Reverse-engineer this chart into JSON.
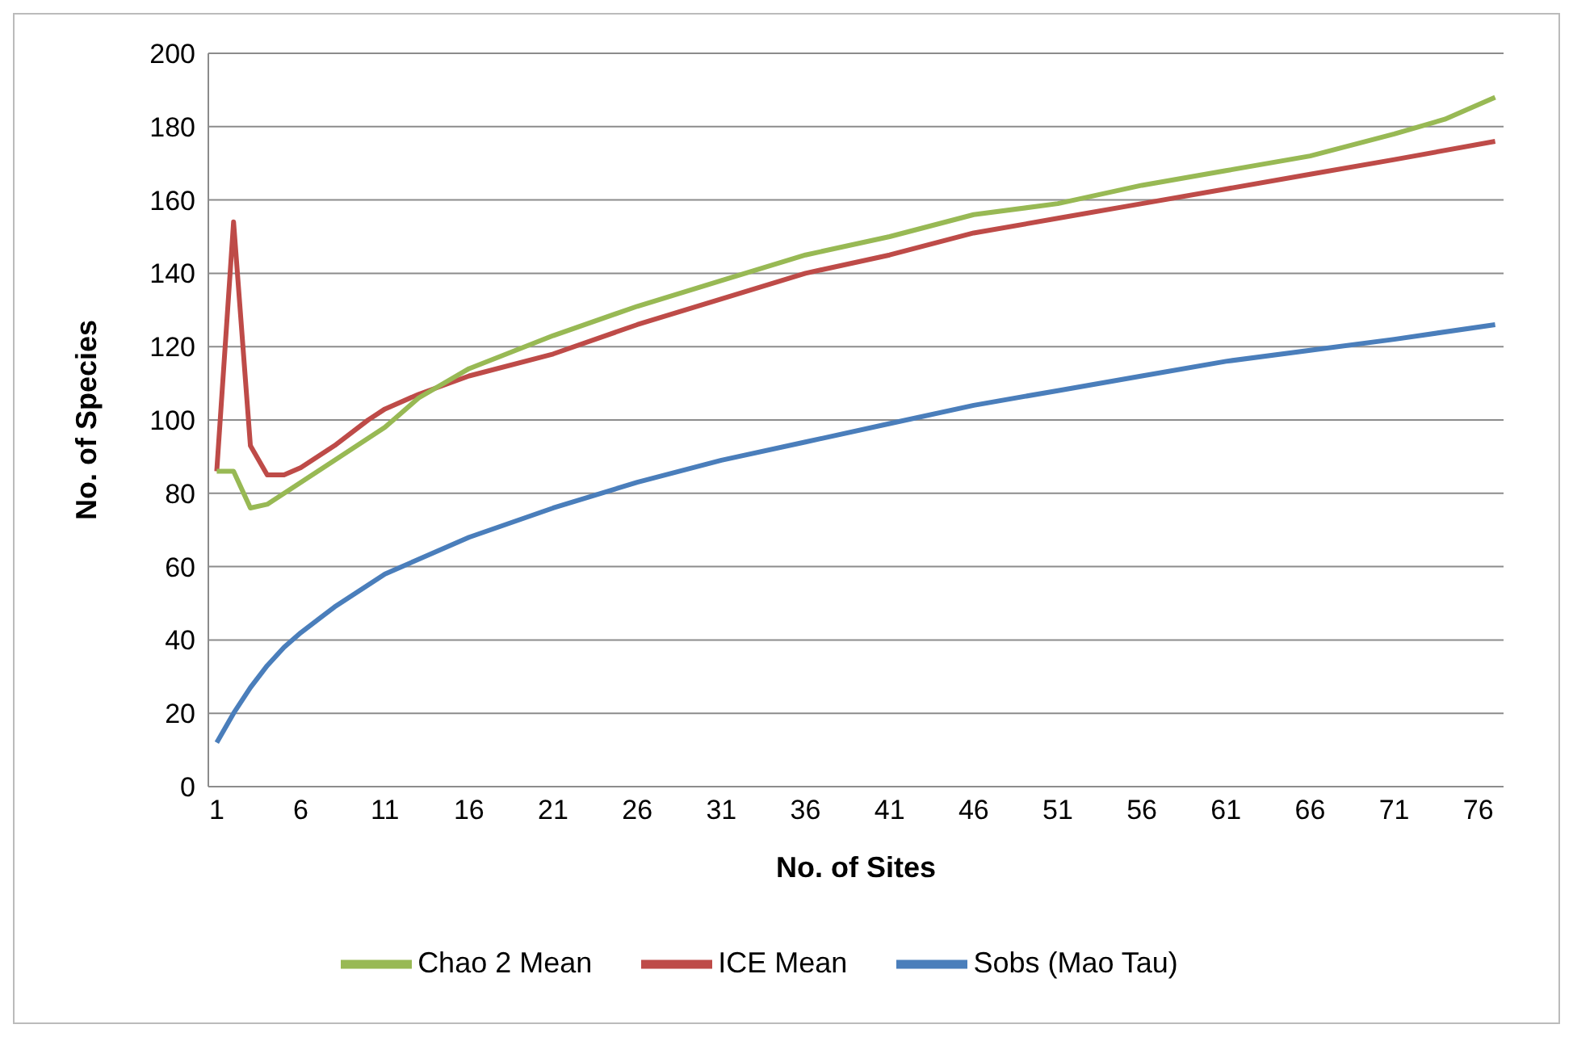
{
  "chart_data": {
    "type": "line",
    "xlabel": "No. of Sites",
    "ylabel": "No. of Species",
    "xlim": [
      0.5,
      77.5
    ],
    "xticks": [
      1,
      6,
      11,
      16,
      21,
      26,
      31,
      36,
      41,
      46,
      51,
      56,
      61,
      66,
      71,
      76
    ],
    "ylim": [
      0,
      200
    ],
    "yticks": [
      0,
      20,
      40,
      60,
      80,
      100,
      120,
      140,
      160,
      180,
      200
    ],
    "grid": "y",
    "legend": "bottom",
    "marker": "none",
    "line_style": "solid",
    "series": [
      {
        "name": "Sobs (Mao Tau)",
        "color": "#4a7ebb",
        "x": [
          1,
          2,
          3,
          4,
          5,
          6,
          8,
          11,
          16,
          21,
          26,
          31,
          36,
          41,
          46,
          51,
          56,
          61,
          66,
          71,
          77
        ],
        "values": [
          12,
          20,
          27,
          33,
          38,
          42,
          49,
          58,
          68,
          76,
          83,
          89,
          94,
          99,
          104,
          108,
          112,
          116,
          119,
          122,
          126
        ]
      },
      {
        "name": "ICE Mean",
        "color": "#be4b48",
        "x": [
          1,
          2,
          3,
          4,
          5,
          6,
          8,
          10,
          11,
          13,
          16,
          21,
          26,
          31,
          36,
          41,
          46,
          51,
          56,
          61,
          66,
          71,
          77
        ],
        "values": [
          86,
          154,
          93,
          85,
          85,
          87,
          93,
          100,
          103,
          107,
          112,
          118,
          126,
          133,
          140,
          145,
          151,
          155,
          159,
          163,
          167,
          171,
          176
        ]
      },
      {
        "name": "Chao 2 Mean",
        "color": "#98b954",
        "x": [
          1,
          2,
          3,
          4,
          6,
          8,
          11,
          13,
          16,
          21,
          26,
          31,
          36,
          41,
          46,
          51,
          56,
          61,
          66,
          71,
          74,
          77
        ],
        "values": [
          86,
          86,
          76,
          77,
          83,
          89,
          98,
          106,
          114,
          123,
          131,
          138,
          145,
          150,
          156,
          159,
          164,
          168,
          172,
          178,
          182,
          188
        ]
      }
    ]
  }
}
